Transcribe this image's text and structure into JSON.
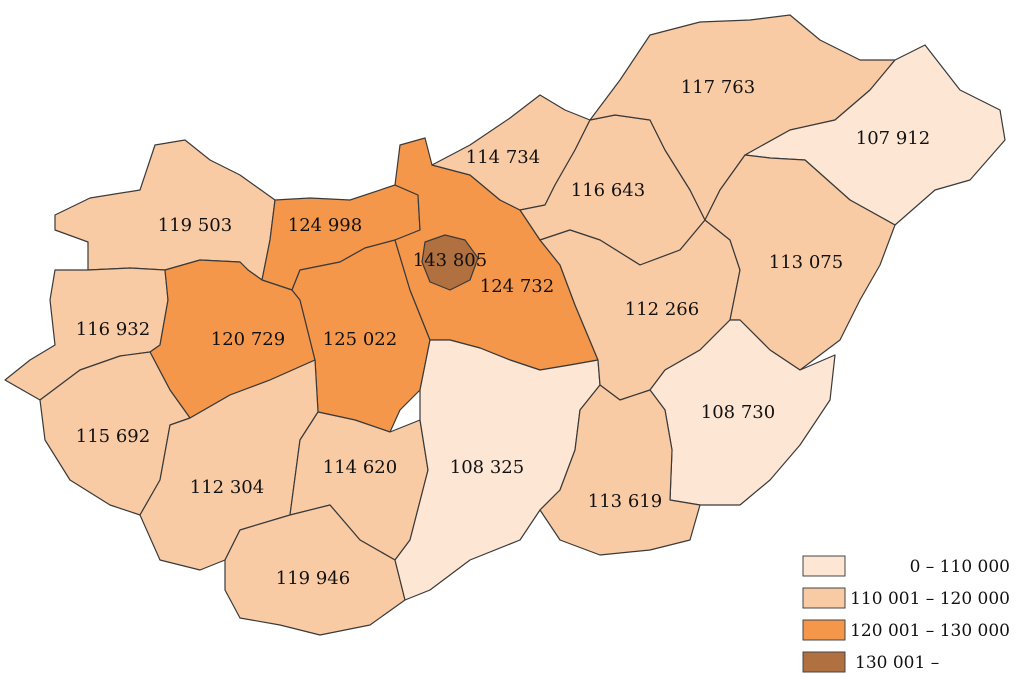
{
  "colors": {
    "c1": "#fde6d4",
    "c2": "#f9cba4",
    "c3": "#f5974b",
    "c4": "#b0703f"
  },
  "legend": {
    "items": [
      {
        "label": "0 – 110 000",
        "color_key": "c1"
      },
      {
        "label": "110 001 – 120 000",
        "color_key": "c2"
      },
      {
        "label": "120 001 – 130 000",
        "color_key": "c3"
      },
      {
        "label": "130 001 –",
        "color_key": "c4"
      }
    ]
  },
  "regions": [
    {
      "id": "gyor-moson-sopron",
      "value": "119 503",
      "color_key": "c2"
    },
    {
      "id": "komarom-esztergom",
      "value": "124 998",
      "color_key": "c3"
    },
    {
      "id": "vas",
      "value": "116 932",
      "color_key": "c2"
    },
    {
      "id": "veszprem",
      "value": "120 729",
      "color_key": "c3"
    },
    {
      "id": "fejer",
      "value": "125 022",
      "color_key": "c3"
    },
    {
      "id": "zala",
      "value": "115 692",
      "color_key": "c2"
    },
    {
      "id": "somogy",
      "value": "112 304",
      "color_key": "c2"
    },
    {
      "id": "tolna",
      "value": "114 620",
      "color_key": "c2"
    },
    {
      "id": "baranya",
      "value": "119 946",
      "color_key": "c2"
    },
    {
      "id": "pest",
      "value": "124 732",
      "color_key": "c3"
    },
    {
      "id": "budapest",
      "value": "143 805",
      "color_key": "c4"
    },
    {
      "id": "bacs-kiskun",
      "value": "108 325",
      "color_key": "c1"
    },
    {
      "id": "nograd",
      "value": "114 734",
      "color_key": "c2"
    },
    {
      "id": "heves",
      "value": "116 643",
      "color_key": "c2"
    },
    {
      "id": "borsod",
      "value": "117 763",
      "color_key": "c2"
    },
    {
      "id": "szabolcs",
      "value": "107 912",
      "color_key": "c1"
    },
    {
      "id": "jasz-nagykun-szolnok",
      "value": "112 266",
      "color_key": "c2"
    },
    {
      "id": "hajdu-bihar",
      "value": "113 075",
      "color_key": "c2"
    },
    {
      "id": "bekes",
      "value": "108 730",
      "color_key": "c1"
    },
    {
      "id": "csongrad",
      "value": "113 619",
      "color_key": "c2"
    }
  ]
}
